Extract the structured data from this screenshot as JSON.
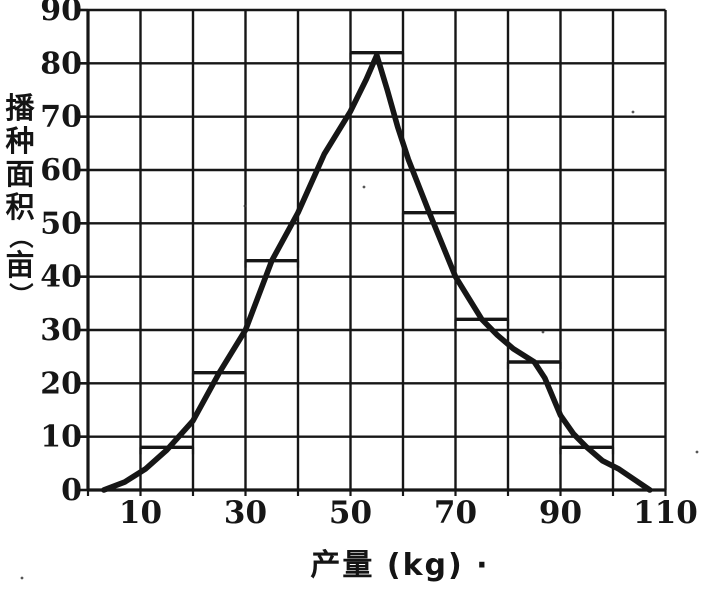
{
  "page": {
    "background": "#ffffff",
    "ink": "#161616"
  },
  "chart_data": {
    "type": "line",
    "subtype": "frequency-polygon-over-histogram-top-marks",
    "title": "",
    "xlabel": "产量 (kg) ·",
    "ylabel": "播种面积（亩）",
    "ylabel_chars": [
      "播",
      "种",
      "面",
      "积",
      "（",
      "亩",
      "）"
    ],
    "xlim": [
      0,
      110
    ],
    "ylim": [
      0,
      90
    ],
    "grid": true,
    "grid_step_x": 10,
    "grid_step_y": 10,
    "x_tick_labels": [
      10,
      30,
      50,
      70,
      90,
      110
    ],
    "y_tick_labels": [
      0,
      10,
      20,
      30,
      40,
      50,
      60,
      70,
      80,
      90
    ],
    "histogram_tops": [
      {
        "interval": [
          10,
          20
        ],
        "height": 8
      },
      {
        "interval": [
          20,
          30
        ],
        "height": 22
      },
      {
        "interval": [
          30,
          40
        ],
        "height": 43
      },
      {
        "interval": [
          50,
          60
        ],
        "height": 82
      },
      {
        "interval": [
          60,
          70
        ],
        "height": 52
      },
      {
        "interval": [
          70,
          80
        ],
        "height": 32
      },
      {
        "interval": [
          80,
          90
        ],
        "height": 24
      },
      {
        "interval": [
          90,
          100
        ],
        "height": 8
      }
    ],
    "curve_peak": {
      "x": 55,
      "y": 82
    },
    "curve_points": [
      [
        3,
        0
      ],
      [
        7,
        1.5
      ],
      [
        11,
        4
      ],
      [
        15,
        7.5
      ],
      [
        20,
        13
      ],
      [
        25,
        22
      ],
      [
        30,
        30
      ],
      [
        35,
        43
      ],
      [
        40,
        52
      ],
      [
        45,
        63
      ],
      [
        50,
        71
      ],
      [
        53,
        77
      ],
      [
        55,
        81.5
      ],
      [
        57,
        75
      ],
      [
        59,
        68
      ],
      [
        61,
        62
      ],
      [
        63,
        57
      ],
      [
        65,
        52
      ],
      [
        67.5,
        46
      ],
      [
        70,
        40
      ],
      [
        72.5,
        36
      ],
      [
        75,
        32
      ],
      [
        78,
        29
      ],
      [
        81,
        26.5
      ],
      [
        85,
        24
      ],
      [
        87,
        21
      ],
      [
        90,
        14
      ],
      [
        92.5,
        10.5
      ],
      [
        95,
        8
      ],
      [
        98,
        5.5
      ],
      [
        101,
        4
      ],
      [
        104,
        2
      ],
      [
        107,
        0
      ]
    ]
  },
  "noise_dots": [
    [
      22,
      578
    ],
    [
      364,
      187
    ],
    [
      543,
      332
    ],
    [
      697,
      452
    ],
    [
      633,
      112
    ],
    [
      245,
      206
    ]
  ]
}
